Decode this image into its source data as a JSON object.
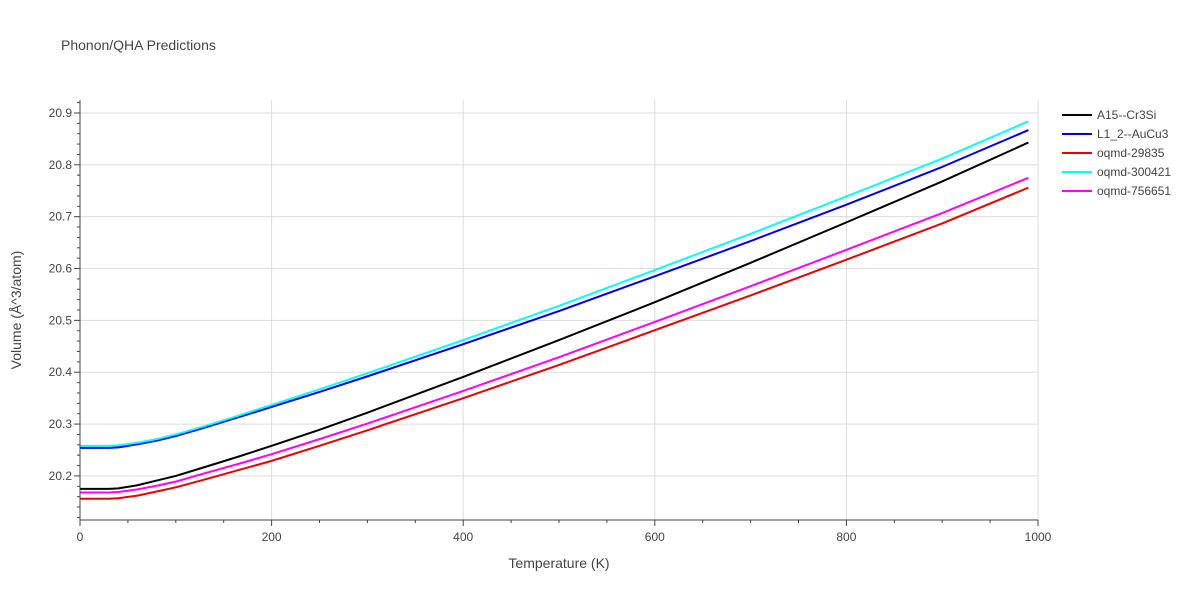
{
  "chart_data": {
    "type": "line",
    "title": "Phonon/QHA Predictions",
    "xlabel": "Temperature (K)",
    "ylabel": "Volume (Å^3/atom)",
    "xlim": [
      0,
      1000
    ],
    "ylim": [
      20.115,
      20.925
    ],
    "x_ticks": [
      0,
      200,
      400,
      600,
      800,
      1000
    ],
    "y_ticks": [
      20.2,
      20.3,
      20.4,
      20.5,
      20.6,
      20.7,
      20.8,
      20.9
    ],
    "grid": true,
    "legend_position": "right",
    "series": [
      {
        "name": "A15--Cr3Si",
        "color": "#000000",
        "x": [
          0,
          30,
          40,
          60,
          80,
          100,
          130,
          165,
          200,
          250,
          300,
          400,
          500,
          600,
          700,
          800,
          900,
          990
        ],
        "y": [
          20.175,
          20.175,
          20.176,
          20.182,
          20.191,
          20.2,
          20.217,
          20.237,
          20.258,
          20.289,
          20.322,
          20.391,
          20.462,
          20.535,
          20.611,
          20.689,
          20.768,
          20.843
        ]
      },
      {
        "name": "L1_2--AuCu3",
        "color": "#0000ee",
        "x": [
          0,
          30,
          40,
          60,
          80,
          100,
          130,
          165,
          200,
          250,
          300,
          400,
          500,
          600,
          700,
          800,
          900,
          990
        ],
        "y": [
          20.254,
          20.254,
          20.255,
          20.261,
          20.268,
          20.277,
          20.293,
          20.313,
          20.333,
          20.362,
          20.392,
          20.454,
          20.518,
          20.585,
          20.653,
          20.723,
          20.796,
          20.867
        ]
      },
      {
        "name": "oqmd-29835",
        "color": "#ee0000",
        "x": [
          0,
          30,
          40,
          60,
          80,
          100,
          130,
          165,
          200,
          250,
          300,
          400,
          500,
          600,
          700,
          800,
          900,
          990
        ],
        "y": [
          20.156,
          20.156,
          20.157,
          20.162,
          20.17,
          20.178,
          20.193,
          20.211,
          20.229,
          20.258,
          20.288,
          20.35,
          20.414,
          20.481,
          20.548,
          20.617,
          20.687,
          20.756
        ]
      },
      {
        "name": "oqmd-300421",
        "color": "#00ffff",
        "x": [
          0,
          30,
          40,
          60,
          80,
          100,
          130,
          165,
          200,
          250,
          300,
          400,
          500,
          600,
          700,
          800,
          900,
          990
        ],
        "y": [
          20.258,
          20.258,
          20.259,
          20.264,
          20.271,
          20.28,
          20.296,
          20.316,
          20.337,
          20.367,
          20.398,
          20.462,
          20.528,
          20.597,
          20.667,
          20.739,
          20.812,
          20.884
        ]
      },
      {
        "name": "oqmd-756651",
        "color": "#ff00ff",
        "x": [
          0,
          30,
          40,
          60,
          80,
          100,
          130,
          165,
          200,
          250,
          300,
          400,
          500,
          600,
          700,
          800,
          900,
          990
        ],
        "y": [
          20.168,
          20.168,
          20.169,
          20.174,
          20.181,
          20.189,
          20.205,
          20.223,
          20.242,
          20.271,
          20.301,
          20.364,
          20.429,
          20.497,
          20.566,
          20.636,
          20.707,
          20.775
        ]
      }
    ]
  }
}
